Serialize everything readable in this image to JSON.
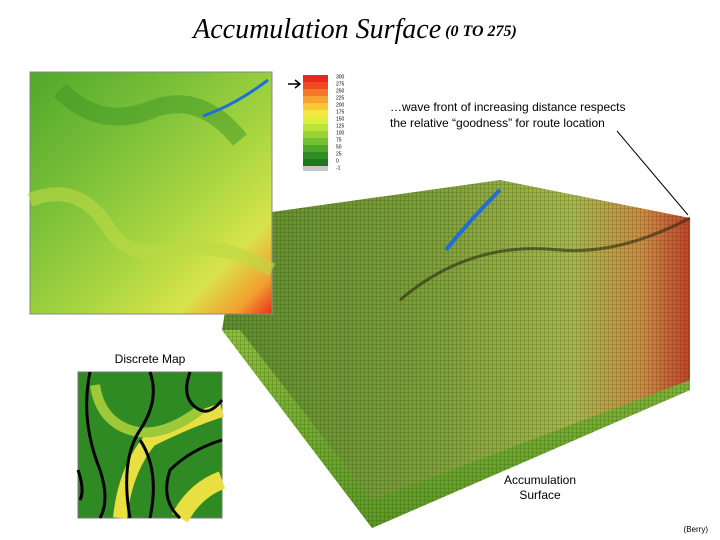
{
  "title": "Accumulation Surface",
  "subtitle": "(0 TO 275)",
  "legend": {
    "labels": [
      "300",
      "275",
      "250",
      "225",
      "200",
      "175",
      "150",
      "125",
      "100",
      "75",
      "50",
      "25",
      "0",
      "-1"
    ]
  },
  "annotation": {
    "line1": "…wave front of increasing distance respects",
    "line2": "the relative “goodness” for route location"
  },
  "discrete_map_label": "Discrete Map",
  "surface_label": {
    "line1": "Accumulation",
    "line2": "Surface"
  },
  "credit": "(Berry)"
}
